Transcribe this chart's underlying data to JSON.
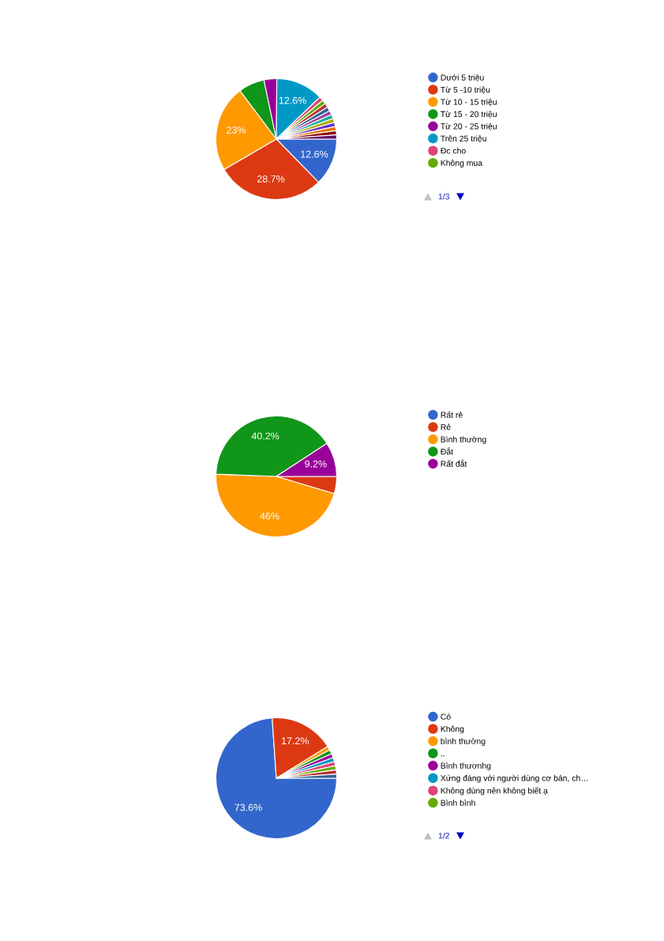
{
  "chart_data": [
    {
      "type": "pie",
      "categories": [
        "Dưới 5 triệu",
        "Từ 5 -10 triệu",
        "Từ 10 - 15 triệu",
        "Từ 15 - 20 triệu",
        "Từ 20 - 25 triệu",
        "Trên 25 triệu",
        "Đc cho",
        "Không mua",
        null,
        null,
        null,
        null,
        null,
        null,
        null,
        null,
        null
      ],
      "values": [
        12.6,
        28.7,
        23,
        6.9,
        3.4,
        12.6,
        1.1,
        1.1,
        1.1,
        1.1,
        1.1,
        1.1,
        1.1,
        1.1,
        1.1,
        1.1,
        1.1
      ],
      "colors": [
        "#3366cc",
        "#dc3912",
        "#ff9900",
        "#109618",
        "#990099",
        "#0099c6",
        "#dd4477",
        "#66aa00",
        "#b82e2e",
        "#316395",
        "#994499",
        "#22aa99",
        "#aaaa11",
        "#6633cc",
        "#e67300",
        "#8b0707",
        "#651067"
      ],
      "value_labels": [
        "12.6%",
        "28.7%",
        "23%",
        null,
        null,
        "12.6%",
        null,
        null,
        null,
        null,
        null,
        null,
        null,
        null,
        null,
        null,
        null
      ],
      "legend": "right",
      "annotations": [
        "1/3"
      ]
    },
    {
      "type": "pie",
      "categories": [
        "Rất rẻ",
        "Rẻ",
        "Bình thường",
        "Đắt",
        "Rất đắt"
      ],
      "values": [
        0,
        4.6,
        46,
        40.2,
        9.2
      ],
      "colors": [
        "#3366cc",
        "#dc3912",
        "#ff9900",
        "#109618",
        "#990099"
      ],
      "value_labels": [
        null,
        null,
        "46%",
        "40.2%",
        "9.2%"
      ],
      "legend": "right"
    },
    {
      "type": "pie",
      "categories": [
        "Có",
        "Không",
        "bình thường",
        "..",
        "Bình thươnhg",
        "Xứng đáng với người dùng cơ bản, ch…",
        "Không dùng nên không biết ạ",
        "Bình bình",
        null,
        null
      ],
      "values": [
        73.6,
        17.2,
        1.1,
        1.1,
        1.1,
        1.1,
        1.1,
        1.1,
        1.1,
        1.1
      ],
      "colors": [
        "#3366cc",
        "#dc3912",
        "#ff9900",
        "#109618",
        "#990099",
        "#0099c6",
        "#dd4477",
        "#66aa00",
        "#b82e2e",
        "#316395"
      ],
      "value_labels": [
        "73.6%",
        "17.2%",
        null,
        null,
        null,
        null,
        null,
        null,
        null,
        null
      ],
      "legend": "right",
      "annotations": [
        "1/2"
      ]
    }
  ]
}
